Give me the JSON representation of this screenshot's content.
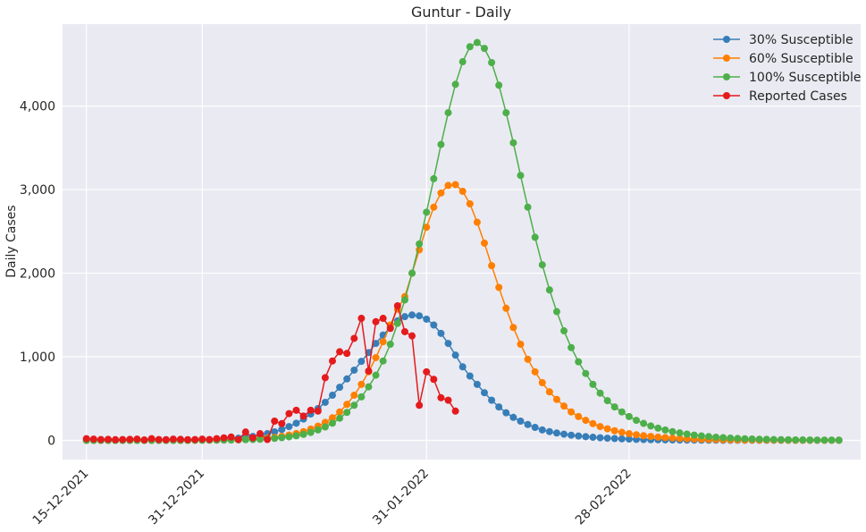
{
  "chart_data": {
    "type": "line",
    "title": "Guntur - Daily",
    "ylabel": "Daily Cases",
    "xlabel": "",
    "x_start": "2021-12-15",
    "x_end": "2022-03-31",
    "xlim": [
      "2021-12-15",
      "2022-03-31"
    ],
    "ylim": [
      -230,
      4980
    ],
    "x_ticks": [
      {
        "date": "2021-12-15",
        "label": "15-12-2021"
      },
      {
        "date": "2021-12-31",
        "label": "31-12-2021"
      },
      {
        "date": "2022-01-31",
        "label": "31-01-2022"
      },
      {
        "date": "2022-02-28",
        "label": "28-02-2022"
      }
    ],
    "y_ticks": [
      {
        "value": 0,
        "label": "0"
      },
      {
        "value": 1000,
        "label": "1,000"
      },
      {
        "value": 2000,
        "label": "2,000"
      },
      {
        "value": 3000,
        "label": "3,000"
      },
      {
        "value": 4000,
        "label": "4,000"
      }
    ],
    "grid": true,
    "legend_position": "top-right",
    "series": [
      {
        "name": "30% Susceptible",
        "color": "#377eb8",
        "values": [
          0,
          0,
          0,
          0,
          0,
          0,
          0,
          0,
          0,
          0,
          0,
          0,
          0,
          0,
          2,
          3,
          5,
          7,
          10,
          14,
          19,
          26,
          35,
          47,
          62,
          80,
          102,
          130,
          165,
          205,
          255,
          315,
          380,
          455,
          540,
          635,
          735,
          840,
          945,
          1050,
          1160,
          1260,
          1350,
          1430,
          1480,
          1500,
          1490,
          1450,
          1380,
          1280,
          1160,
          1020,
          880,
          770,
          670,
          570,
          480,
          400,
          330,
          275,
          230,
          190,
          155,
          125,
          105,
          88,
          74,
          62,
          52,
          44,
          37,
          31,
          26,
          22,
          18,
          15,
          12,
          10,
          8,
          7,
          6,
          5,
          4,
          3,
          3,
          2,
          2,
          2,
          1,
          1,
          1,
          1,
          1,
          1,
          1,
          1,
          1,
          1,
          1,
          1,
          1,
          1,
          1,
          1,
          1
        ]
      },
      {
        "name": "60% Susceptible",
        "color": "#ff7f00",
        "values": [
          0,
          0,
          0,
          0,
          0,
          0,
          0,
          0,
          0,
          0,
          0,
          0,
          0,
          0,
          0,
          1,
          1,
          2,
          3,
          4,
          6,
          8,
          11,
          15,
          20,
          27,
          36,
          48,
          63,
          82,
          105,
          135,
          170,
          215,
          270,
          340,
          430,
          540,
          670,
          820,
          990,
          1180,
          1380,
          1570,
          1720,
          2000,
          2280,
          2550,
          2790,
          2960,
          3050,
          3060,
          2980,
          2830,
          2610,
          2360,
          2090,
          1830,
          1580,
          1350,
          1150,
          970,
          820,
          690,
          580,
          490,
          410,
          340,
          285,
          240,
          200,
          165,
          138,
          115,
          96,
          80,
          67,
          56,
          47,
          39,
          33,
          27,
          23,
          19,
          16,
          13,
          11,
          9,
          8,
          6,
          5,
          4,
          4,
          3,
          3,
          2,
          2,
          2,
          1,
          1,
          1,
          1,
          1,
          1,
          1
        ]
      },
      {
        "name": "100% Susceptible",
        "color": "#4daf4a",
        "values": [
          0,
          0,
          0,
          0,
          0,
          0,
          0,
          0,
          0,
          0,
          0,
          0,
          0,
          0,
          0,
          1,
          1,
          2,
          2,
          3,
          4,
          6,
          8,
          10,
          13,
          18,
          24,
          32,
          42,
          55,
          72,
          95,
          125,
          160,
          205,
          265,
          335,
          420,
          520,
          640,
          780,
          950,
          1150,
          1400,
          1680,
          2000,
          2350,
          2730,
          3130,
          3540,
          3920,
          4260,
          4530,
          4710,
          4760,
          4690,
          4520,
          4250,
          3920,
          3560,
          3170,
          2790,
          2430,
          2100,
          1800,
          1540,
          1310,
          1110,
          940,
          800,
          670,
          565,
          475,
          400,
          340,
          285,
          240,
          203,
          172,
          146,
          124,
          105,
          89,
          75,
          63,
          53,
          45,
          38,
          32,
          27,
          23,
          19,
          16,
          14,
          12,
          10,
          8,
          7,
          6,
          5,
          4,
          3,
          3,
          2,
          2
        ]
      },
      {
        "name": "Reported Cases",
        "color": "#e41a1c",
        "values": [
          20,
          15,
          10,
          12,
          8,
          10,
          12,
          15,
          5,
          20,
          10,
          8,
          15,
          12,
          8,
          10,
          15,
          10,
          20,
          30,
          40,
          10,
          100,
          30,
          80,
          10,
          230,
          200,
          320,
          360,
          290,
          360,
          350,
          750,
          950,
          1060,
          1040,
          1220,
          1460,
          830,
          1420,
          1460,
          1340,
          1610,
          1300,
          1250,
          420,
          820,
          730,
          510,
          480,
          350
        ]
      }
    ]
  }
}
